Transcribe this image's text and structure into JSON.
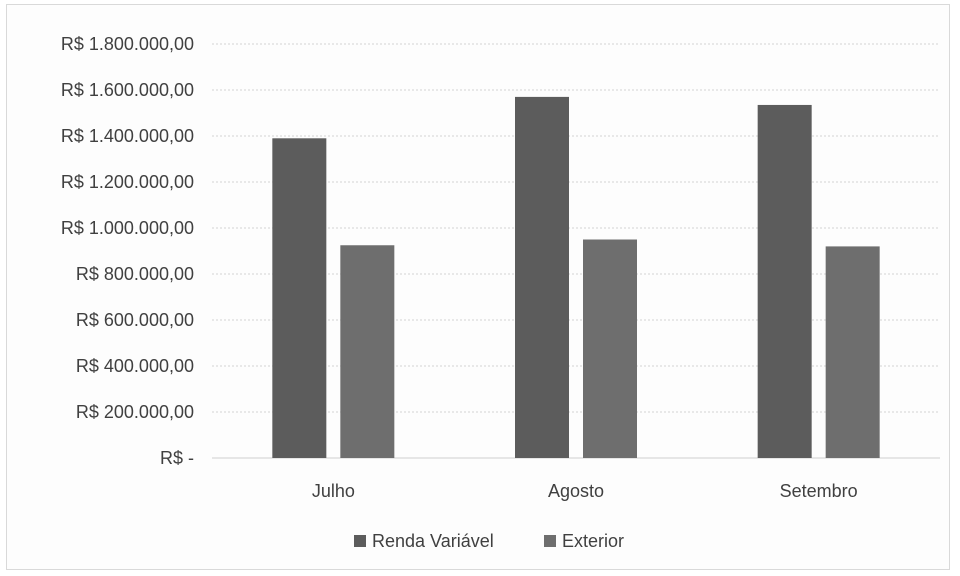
{
  "chart_data": {
    "type": "bar",
    "categories": [
      "Julho",
      "Agosto",
      "Setembro"
    ],
    "series": [
      {
        "name": "Renda Variável",
        "color": "#5c5c5c",
        "values": [
          1390000,
          1570000,
          1535000
        ]
      },
      {
        "name": "Exterior",
        "color": "#6e6e6e",
        "values": [
          925000,
          950000,
          920000
        ]
      }
    ],
    "y_ticks": [
      0,
      200000,
      400000,
      600000,
      800000,
      1000000,
      1200000,
      1400000,
      1600000,
      1800000
    ],
    "y_tick_labels": [
      "R$ -",
      "R$ 200.000,00",
      "R$ 400.000,00",
      "R$ 600.000,00",
      "R$ 800.000,00",
      "R$ 1.000.000,00",
      "R$ 1.200.000,00",
      "R$ 1.400.000,00",
      "R$ 1.600.000,00",
      "R$ 1.800.000,00"
    ],
    "ylim": [
      0,
      1800000
    ],
    "grid": true,
    "legend_position": "bottom",
    "title": "",
    "xlabel": "",
    "ylabel": ""
  }
}
